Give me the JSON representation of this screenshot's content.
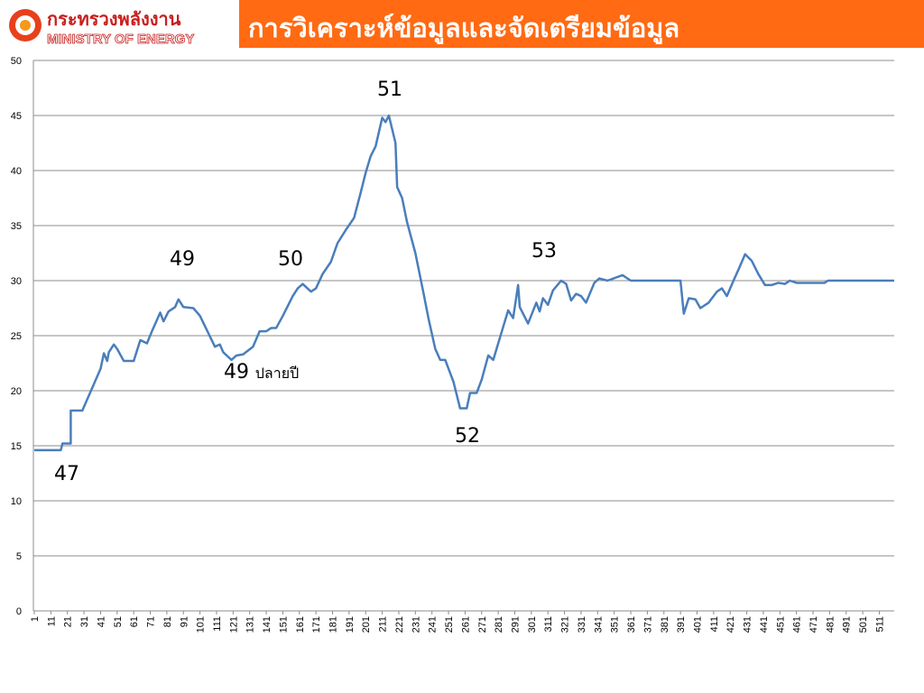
{
  "header": {
    "logo_thai": "กระทรวงพลังงาน",
    "logo_english": "MINISTRY OF ENERGY",
    "title": "การวิเคราะห์ข้อมูลและจัดเตรียมข้อมูล"
  },
  "chart_data": {
    "type": "line",
    "x": [
      1,
      17,
      18,
      23,
      23,
      30,
      41,
      43,
      45,
      46,
      49,
      51,
      55,
      61,
      65,
      69,
      72,
      77,
      79,
      82,
      86,
      88,
      91,
      97,
      101,
      110,
      113,
      115,
      120,
      123,
      127,
      133,
      137,
      141,
      144,
      147,
      151,
      157,
      160,
      163,
      168,
      171,
      175,
      180,
      184,
      189,
      194,
      198,
      201,
      204,
      207,
      211,
      213,
      215,
      219,
      220,
      223,
      226,
      231,
      236,
      239,
      243,
      246,
      249,
      254,
      258,
      262,
      264,
      268,
      271,
      275,
      278,
      282,
      287,
      290,
      293,
      294,
      299,
      304,
      306,
      308,
      311,
      314,
      319,
      322,
      325,
      328,
      331,
      334,
      339,
      342,
      347,
      356,
      361,
      378,
      391,
      393,
      396,
      400,
      403,
      408,
      413,
      416,
      419,
      423,
      426,
      430,
      434,
      438,
      442,
      446,
      450,
      454,
      457,
      461,
      478,
      480,
      520
    ],
    "series": [
      {
        "color": "#4a7ebb",
        "values": [
          14.6,
          14.6,
          15.2,
          15.2,
          18.2,
          18.2,
          22,
          23.4,
          22.7,
          23.5,
          24.2,
          23.8,
          22.7,
          22.7,
          24.6,
          24.3,
          25.4,
          27.1,
          26.3,
          27.2,
          27.6,
          28.3,
          27.6,
          27.5,
          26.8,
          24,
          24.2,
          23.5,
          22.8,
          23.2,
          23.3,
          24,
          25.4,
          25.4,
          25.7,
          25.7,
          26.8,
          28.6,
          29.3,
          29.7,
          29,
          29.3,
          30.6,
          31.7,
          33.4,
          34.6,
          35.7,
          38,
          39.8,
          41.3,
          42.2,
          44.8,
          44.4,
          45,
          42.5,
          38.5,
          37.5,
          35.3,
          32.5,
          28.8,
          26.5,
          23.8,
          22.8,
          22.8,
          20.8,
          18.4,
          18.4,
          19.8,
          19.8,
          21,
          23.2,
          22.8,
          24.8,
          27.3,
          26.6,
          29.6,
          27.6,
          26.1,
          28,
          27.2,
          28.4,
          27.8,
          29.1,
          30,
          29.7,
          28.2,
          28.8,
          28.6,
          28,
          29.8,
          30.2,
          30,
          30.5,
          30,
          30,
          30,
          27,
          28.4,
          28.3,
          27.5,
          28,
          29,
          29.3,
          28.6,
          30,
          31,
          32.4,
          31.8,
          30.6,
          29.6,
          29.6,
          29.8,
          29.7,
          30,
          29.8,
          29.8,
          30,
          30
        ]
      }
    ],
    "xlim": [
      1,
      520
    ],
    "ylim": [
      0,
      50
    ],
    "xticks": [
      1,
      11,
      21,
      31,
      41,
      51,
      61,
      71,
      81,
      91,
      101,
      111,
      121,
      131,
      141,
      151,
      161,
      171,
      181,
      191,
      201,
      211,
      221,
      231,
      241,
      251,
      261,
      271,
      281,
      291,
      301,
      311,
      321,
      331,
      341,
      351,
      361,
      371,
      381,
      391,
      401,
      411,
      421,
      431,
      441,
      451,
      461,
      471,
      481,
      491,
      501,
      511
    ],
    "yticks": [
      0,
      5,
      10,
      15,
      20,
      25,
      30,
      35,
      40,
      45,
      50
    ],
    "grid": true,
    "annotations": [
      "47",
      "49",
      "50",
      "51",
      "49",
      "ปลายปี",
      "52",
      "53"
    ]
  }
}
